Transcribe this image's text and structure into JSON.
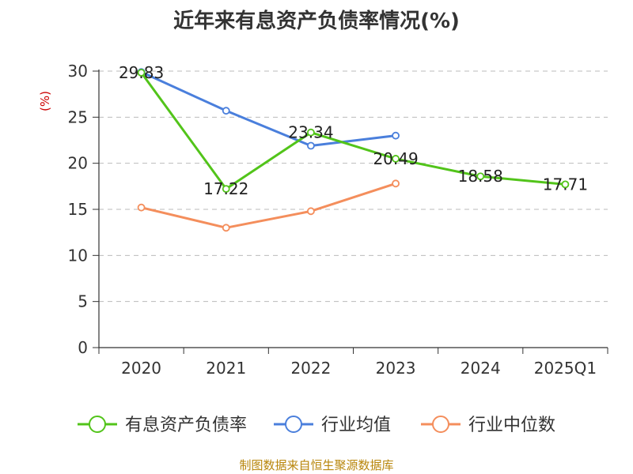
{
  "title": "近年来有息资产负债率情况(%)",
  "source": "制图数据来自恒生聚源数据库",
  "chart_data": {
    "type": "line",
    "ylabel": "(%)",
    "ylim": [
      0,
      30
    ],
    "yticks": [
      0,
      5,
      10,
      15,
      20,
      25,
      30
    ],
    "grid": true,
    "legend_position": "bottom",
    "categories": [
      "2020",
      "2021",
      "2022",
      "2023",
      "2024",
      "2025Q1"
    ],
    "series": [
      {
        "name": "有息资产负债率",
        "color": "#52c41a",
        "values": [
          29.83,
          17.22,
          23.34,
          20.49,
          18.58,
          17.71
        ],
        "labels": [
          "29.83",
          "17.22",
          "23.34",
          "20.49",
          "18.58",
          "17.71"
        ]
      },
      {
        "name": "行业均值",
        "color": "#4a7fdc",
        "values": [
          29.9,
          25.7,
          21.9,
          23.0,
          null,
          null
        ]
      },
      {
        "name": "行业中位数",
        "color": "#f48e5c",
        "values": [
          15.2,
          13.0,
          14.8,
          17.8,
          null,
          null
        ]
      }
    ]
  }
}
